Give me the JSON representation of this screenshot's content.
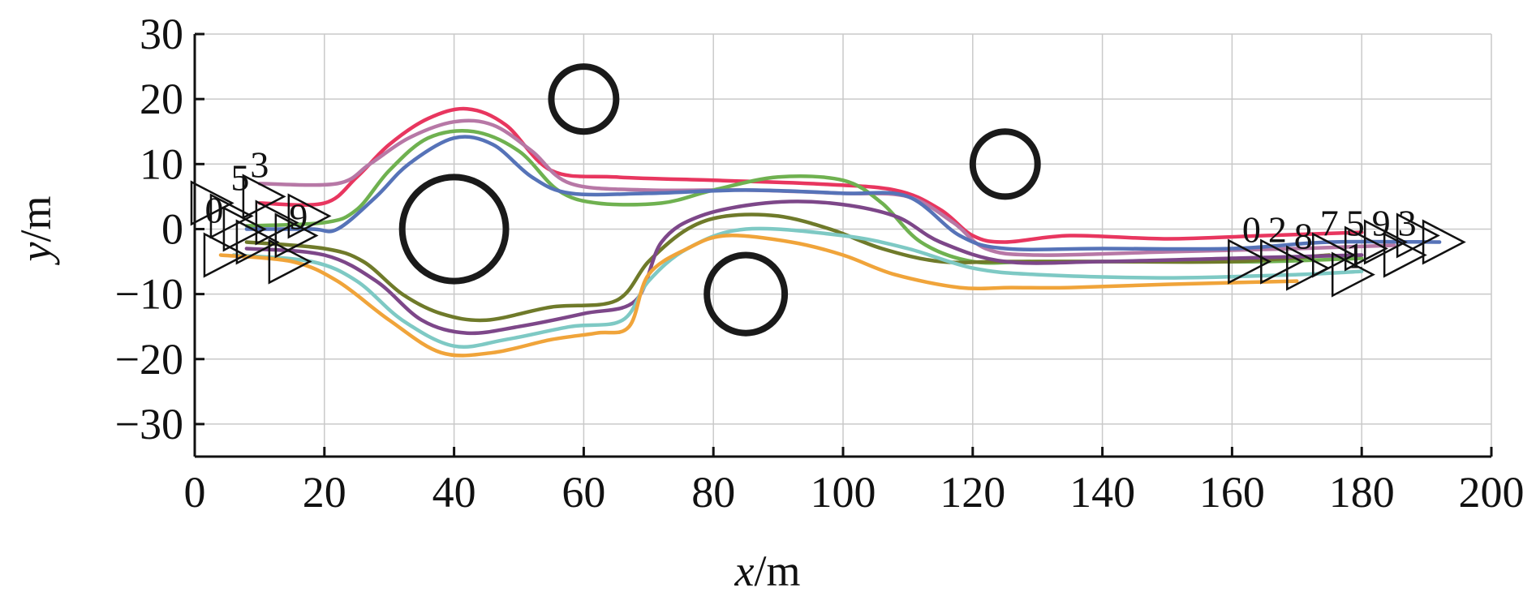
{
  "chart_data": {
    "type": "line",
    "xlabel": {
      "var": "x",
      "unit": "/m"
    },
    "ylabel": {
      "var": "y",
      "unit": "/m"
    },
    "xlim": [
      0,
      200
    ],
    "ylim": [
      -35,
      30
    ],
    "xticks": [
      0,
      20,
      40,
      60,
      80,
      100,
      120,
      140,
      160,
      180,
      200
    ],
    "yticks": [
      30,
      20,
      10,
      0,
      -10,
      -20,
      -30
    ],
    "ytick_labels": [
      "30",
      "20",
      "10",
      "0",
      "−10",
      "−20",
      "−30"
    ],
    "grid": true,
    "obstacles": [
      {
        "cx": 40,
        "cy": 0,
        "r": 8
      },
      {
        "cx": 60,
        "cy": 20,
        "r": 5
      },
      {
        "cx": 85,
        "cy": -10,
        "r": 6
      },
      {
        "cx": 125,
        "cy": 10,
        "r": 5
      }
    ],
    "series": [
      {
        "color": "#e8365f",
        "points": [
          [
            10,
            4
          ],
          [
            20,
            4
          ],
          [
            25,
            8
          ],
          [
            30,
            13
          ],
          [
            36,
            17
          ],
          [
            42,
            18.5
          ],
          [
            48,
            16
          ],
          [
            55,
            9
          ],
          [
            65,
            8
          ],
          [
            80,
            7.5
          ],
          [
            95,
            7
          ],
          [
            108,
            6
          ],
          [
            115,
            3
          ],
          [
            120,
            -1
          ],
          [
            125,
            -2
          ],
          [
            135,
            -1
          ],
          [
            150,
            -1.5
          ],
          [
            165,
            -1
          ],
          [
            180,
            -0.5
          ]
        ]
      },
      {
        "color": "#b778a6",
        "points": [
          [
            10,
            7
          ],
          [
            22,
            7
          ],
          [
            27,
            10
          ],
          [
            33,
            14
          ],
          [
            40,
            16.5
          ],
          [
            46,
            16
          ],
          [
            52,
            12
          ],
          [
            58,
            7
          ],
          [
            70,
            6
          ],
          [
            85,
            6
          ],
          [
            100,
            5.5
          ],
          [
            110,
            5
          ],
          [
            117,
            1
          ],
          [
            122,
            -3
          ],
          [
            130,
            -4
          ],
          [
            150,
            -3.5
          ],
          [
            170,
            -3
          ],
          [
            185,
            -2.5
          ]
        ]
      },
      {
        "color": "#6fb150",
        "points": [
          [
            8,
            0.5
          ],
          [
            20,
            1
          ],
          [
            25,
            3
          ],
          [
            30,
            9
          ],
          [
            36,
            14
          ],
          [
            43,
            15
          ],
          [
            50,
            12
          ],
          [
            56,
            6
          ],
          [
            62,
            4
          ],
          [
            72,
            4
          ],
          [
            80,
            6
          ],
          [
            90,
            8
          ],
          [
            100,
            7.5
          ],
          [
            106,
            4
          ],
          [
            112,
            -2
          ],
          [
            120,
            -5
          ],
          [
            130,
            -5
          ],
          [
            150,
            -5
          ],
          [
            165,
            -5
          ],
          [
            180,
            -4.5
          ]
        ]
      },
      {
        "color": "#5673b8",
        "points": [
          [
            8,
            0
          ],
          [
            18,
            0
          ],
          [
            22,
            0
          ],
          [
            28,
            5
          ],
          [
            33,
            10
          ],
          [
            40,
            14
          ],
          [
            46,
            13
          ],
          [
            52,
            8
          ],
          [
            58,
            5.5
          ],
          [
            70,
            5.5
          ],
          [
            85,
            6
          ],
          [
            100,
            5.5
          ],
          [
            110,
            5
          ],
          [
            118,
            -1
          ],
          [
            125,
            -3
          ],
          [
            140,
            -3
          ],
          [
            160,
            -3
          ],
          [
            175,
            -2
          ],
          [
            192,
            -2
          ]
        ]
      },
      {
        "color": "#6f7a2a",
        "points": [
          [
            8,
            -2
          ],
          [
            20,
            -3
          ],
          [
            26,
            -5
          ],
          [
            32,
            -10
          ],
          [
            38,
            -13
          ],
          [
            45,
            -14
          ],
          [
            55,
            -12
          ],
          [
            65,
            -11
          ],
          [
            70,
            -5
          ],
          [
            76,
            0
          ],
          [
            82,
            2
          ],
          [
            90,
            2
          ],
          [
            98,
            0
          ],
          [
            106,
            -3
          ],
          [
            115,
            -5
          ],
          [
            125,
            -5
          ],
          [
            140,
            -5
          ],
          [
            160,
            -5
          ],
          [
            175,
            -4
          ]
        ]
      },
      {
        "color": "#7d4789",
        "points": [
          [
            8,
            -3
          ],
          [
            20,
            -4
          ],
          [
            28,
            -8
          ],
          [
            35,
            -14
          ],
          [
            42,
            -16
          ],
          [
            50,
            -15
          ],
          [
            60,
            -13
          ],
          [
            68,
            -11
          ],
          [
            72,
            -2
          ],
          [
            78,
            2
          ],
          [
            88,
            4
          ],
          [
            98,
            4
          ],
          [
            108,
            2
          ],
          [
            115,
            -2
          ],
          [
            125,
            -5
          ],
          [
            140,
            -5
          ],
          [
            160,
            -4.5
          ],
          [
            180,
            -4
          ]
        ]
      },
      {
        "color": "#7ec9c4",
        "points": [
          [
            6,
            -4
          ],
          [
            18,
            -5
          ],
          [
            25,
            -8
          ],
          [
            32,
            -14
          ],
          [
            40,
            -18
          ],
          [
            48,
            -17
          ],
          [
            58,
            -15
          ],
          [
            66,
            -14
          ],
          [
            70,
            -8
          ],
          [
            76,
            -3
          ],
          [
            85,
            0
          ],
          [
            100,
            -1
          ],
          [
            110,
            -3
          ],
          [
            120,
            -6
          ],
          [
            130,
            -7
          ],
          [
            150,
            -7.5
          ],
          [
            170,
            -7
          ],
          [
            180,
            -6.5
          ]
        ]
      },
      {
        "color": "#f0a43a",
        "points": [
          [
            4,
            -4
          ],
          [
            15,
            -5
          ],
          [
            22,
            -8
          ],
          [
            30,
            -14
          ],
          [
            38,
            -19
          ],
          [
            46,
            -19
          ],
          [
            55,
            -17
          ],
          [
            62,
            -16
          ],
          [
            67,
            -15
          ],
          [
            70,
            -7
          ],
          [
            76,
            -3
          ],
          [
            82,
            -1
          ],
          [
            92,
            -2
          ],
          [
            100,
            -4
          ],
          [
            108,
            -7
          ],
          [
            118,
            -9
          ],
          [
            126,
            -9
          ],
          [
            135,
            -9
          ],
          [
            150,
            -8.5
          ],
          [
            170,
            -8
          ]
        ]
      }
    ],
    "markers": [
      {
        "x": 2,
        "y": 4
      },
      {
        "x": 5,
        "y": 2
      },
      {
        "x": 7,
        "y": 0
      },
      {
        "x": 9,
        "y": -2
      },
      {
        "x": 4,
        "y": -4
      },
      {
        "x": 10,
        "y": 5
      },
      {
        "x": 12,
        "y": 1
      },
      {
        "x": 15,
        "y": -1
      },
      {
        "x": 14,
        "y": -5
      },
      {
        "x": 17,
        "y": 2
      },
      {
        "x": 162,
        "y": -5
      },
      {
        "x": 167,
        "y": -5
      },
      {
        "x": 171,
        "y": -6
      },
      {
        "x": 175,
        "y": -4
      },
      {
        "x": 178,
        "y": -7
      },
      {
        "x": 180,
        "y": -3
      },
      {
        "x": 183,
        "y": -2
      },
      {
        "x": 186,
        "y": -4
      },
      {
        "x": 188,
        "y": -1
      },
      {
        "x": 192,
        "y": -2
      }
    ],
    "marker_labels": [
      {
        "text": "3",
        "x": 10,
        "y": 8
      },
      {
        "text": "5",
        "x": 7,
        "y": 6
      },
      {
        "text": "0",
        "x": 3,
        "y": 1
      },
      {
        "text": "9",
        "x": 16,
        "y": 0
      },
      {
        "text": "0",
        "x": 163,
        "y": -2
      },
      {
        "text": "2",
        "x": 167,
        "y": -2
      },
      {
        "text": "8",
        "x": 171,
        "y": -3
      },
      {
        "text": "7",
        "x": 175,
        "y": -1
      },
      {
        "text": "5",
        "x": 179,
        "y": -1
      },
      {
        "text": "9",
        "x": 183,
        "y": -1
      },
      {
        "text": "3",
        "x": 187,
        "y": -1
      },
      {
        "text": "1",
        "x": 179,
        "y": -6
      }
    ]
  }
}
